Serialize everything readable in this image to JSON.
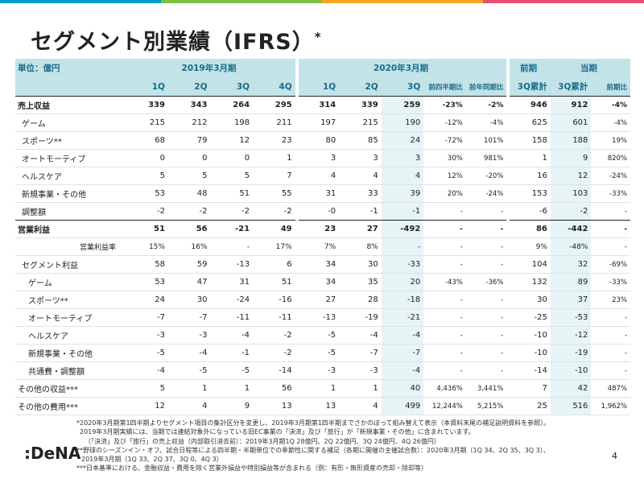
{
  "title": "セグメント別業績（IFRS）",
  "title_mark": "*",
  "header": {
    "unit": "単位：億円",
    "group_2019": "2019年3月期",
    "group_2020": "2020年3月期",
    "group_prev": "前期",
    "group_curr": "当期",
    "q1": "1Q",
    "q2": "2Q",
    "q3": "3Q",
    "q4": "4Q",
    "qoq": "前四半期比",
    "yoy": "前年同期比",
    "cum_prev": "3Q累計",
    "cum_curr": "3Q累計",
    "cum_yoy": "前期比"
  },
  "rows": [
    {
      "label": "売上収益",
      "v": [
        "339",
        "343",
        "264",
        "295",
        "314",
        "339",
        "259",
        "-23%",
        "-2%",
        "946",
        "912",
        "-4%"
      ]
    },
    {
      "label": "ゲーム",
      "v": [
        "215",
        "212",
        "198",
        "211",
        "197",
        "215",
        "190",
        "-12%",
        "-4%",
        "625",
        "601",
        "-4%"
      ]
    },
    {
      "label": "スポーツ**",
      "v": [
        "68",
        "79",
        "12",
        "23",
        "80",
        "85",
        "24",
        "-72%",
        "101%",
        "158",
        "188",
        "19%"
      ]
    },
    {
      "label": "オートモーティブ",
      "v": [
        "0",
        "0",
        "0",
        "1",
        "3",
        "3",
        "3",
        "30%",
        "981%",
        "1",
        "9",
        "820%"
      ]
    },
    {
      "label": "ヘルスケア",
      "v": [
        "5",
        "5",
        "5",
        "7",
        "4",
        "4",
        "4",
        "12%",
        "-20%",
        "16",
        "12",
        "-24%"
      ]
    },
    {
      "label": "新規事業・その他",
      "v": [
        "53",
        "48",
        "51",
        "55",
        "31",
        "33",
        "39",
        "20%",
        "-24%",
        "153",
        "103",
        "-33%"
      ]
    },
    {
      "label": "調整額",
      "v": [
        "-2",
        "-2",
        "-2",
        "-2",
        "-0",
        "-1",
        "-1",
        "-",
        "-",
        "-6",
        "-2",
        "-"
      ]
    },
    {
      "label": "営業利益",
      "v": [
        "51",
        "56",
        "-21",
        "49",
        "23",
        "27",
        "-492",
        "-",
        "-",
        "86",
        "-442",
        "-"
      ]
    },
    {
      "label": "営業利益率",
      "v": [
        "15%",
        "16%",
        "-",
        "17%",
        "7%",
        "8%",
        "-",
        "-",
        "-",
        "9%",
        "-48%",
        "-"
      ]
    },
    {
      "label": "セグメント利益",
      "v": [
        "58",
        "59",
        "-13",
        "6",
        "34",
        "30",
        "-33",
        "-",
        "-",
        "104",
        "32",
        "-69%"
      ]
    },
    {
      "label": "ゲーム",
      "v": [
        "53",
        "47",
        "31",
        "51",
        "34",
        "35",
        "20",
        "-43%",
        "-36%",
        "132",
        "89",
        "-33%"
      ]
    },
    {
      "label": "スポーツ**",
      "v": [
        "24",
        "30",
        "-24",
        "-16",
        "27",
        "28",
        "-18",
        "-",
        "-",
        "30",
        "37",
        "23%"
      ]
    },
    {
      "label": "オートモーティブ",
      "v": [
        "-7",
        "-7",
        "-11",
        "-11",
        "-13",
        "-19",
        "-21",
        "-",
        "-",
        "-25",
        "-53",
        "-"
      ]
    },
    {
      "label": "ヘルスケア",
      "v": [
        "-3",
        "-3",
        "-4",
        "-2",
        "-5",
        "-4",
        "-4",
        "-",
        "-",
        "-10",
        "-12",
        "-"
      ]
    },
    {
      "label": "新規事業・その他",
      "v": [
        "-5",
        "-4",
        "-1",
        "-2",
        "-5",
        "-7",
        "-7",
        "-",
        "-",
        "-10",
        "-19",
        "-"
      ]
    },
    {
      "label": "共通費・調整額",
      "v": [
        "-4",
        "-5",
        "-5",
        "-14",
        "-3",
        "-3",
        "-4",
        "-",
        "-",
        "-14",
        "-10",
        "-"
      ]
    },
    {
      "label": "その他の収益***",
      "v": [
        "5",
        "1",
        "1",
        "56",
        "1",
        "1",
        "40",
        "4,436%",
        "3,441%",
        "7",
        "42",
        "487%"
      ]
    },
    {
      "label": "その他の費用***",
      "v": [
        "12",
        "4",
        "9",
        "13",
        "13",
        "4",
        "499",
        "12,244%",
        "5,215%",
        "25",
        "516",
        "1,962%"
      ]
    }
  ],
  "notes": [
    "*2020年3月期第1四半期よりセグメント項目の集計区分を変更し、2019年3月期第1四半期までさかのぼって組み替えて表示（本資料末尾の補足説明資料を参照）。",
    "2019年3月期実績には、当期では連結対象外になっている旧EC事業の「決済」及び「旅行」が「新規事業・その他」に含まれています。",
    "（「決済」及び「旅行」の売上収益（内部取引消去前）：2019年3月期1Q 28億円、2Q 22億円、3Q 24億円、4Q 26億円）",
    "**野球のシーズンイン・オフ、試合日程等による四半期・半期単位での季節性に関する補足（各期に開催の主催試合数）：2020年3月期（1Q 34、2Q 35、3Q 3）、",
    "2019年3月期（1Q 33、2Q 37、3Q 0、4Q 3）",
    "***日本基準における、金融収益・費用を除く営業外損益や特別損益等が含まれる（例：有形・無形資産の売却・除却等）"
  ],
  "logo": ":DeNA",
  "page_number": "4",
  "colors": {
    "header_bg": "#c2e3e8",
    "header_text": "#1b6c8a",
    "highlight": "#e6f4f6",
    "topbar": [
      "#00a0c6",
      "#f5a623",
      "#e94e77",
      "#7bc043"
    ]
  }
}
